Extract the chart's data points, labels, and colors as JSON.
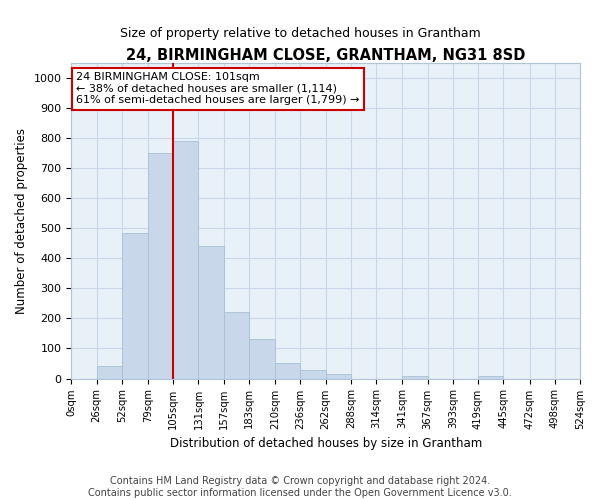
{
  "title": "24, BIRMINGHAM CLOSE, GRANTHAM, NG31 8SD",
  "subtitle": "Size of property relative to detached houses in Grantham",
  "xlabel": "Distribution of detached houses by size in Grantham",
  "ylabel": "Number of detached properties",
  "bar_color": "#c8d8ea",
  "bar_edge_color": "#a8c0d4",
  "bins": [
    0,
    26,
    52,
    79,
    105,
    131,
    157,
    183,
    210,
    236,
    262,
    288,
    314,
    341,
    367,
    393,
    419,
    445,
    472,
    498,
    524
  ],
  "bin_labels": [
    "0sqm",
    "26sqm",
    "52sqm",
    "79sqm",
    "105sqm",
    "131sqm",
    "157sqm",
    "183sqm",
    "210sqm",
    "236sqm",
    "262sqm",
    "288sqm",
    "314sqm",
    "341sqm",
    "367sqm",
    "393sqm",
    "419sqm",
    "445sqm",
    "472sqm",
    "498sqm",
    "524sqm"
  ],
  "values": [
    0,
    43,
    483,
    750,
    790,
    440,
    220,
    130,
    53,
    28,
    15,
    0,
    0,
    8,
    0,
    0,
    8,
    0,
    0,
    0
  ],
  "vline_x": 105,
  "annotation_line1": "24 BIRMINGHAM CLOSE: 101sqm",
  "annotation_line2": "← 38% of detached houses are smaller (1,114)",
  "annotation_line3": "61% of semi-detached houses are larger (1,799) →",
  "ylim": [
    0,
    1050
  ],
  "yticks": [
    0,
    100,
    200,
    300,
    400,
    500,
    600,
    700,
    800,
    900,
    1000
  ],
  "grid_color": "#c8d8e8",
  "background_color": "#e8f0f8",
  "footer_text": "Contains HM Land Registry data © Crown copyright and database right 2024.\nContains public sector information licensed under the Open Government Licence v3.0.",
  "red_line_color": "#cc0000",
  "red_box_color": "#cc0000"
}
